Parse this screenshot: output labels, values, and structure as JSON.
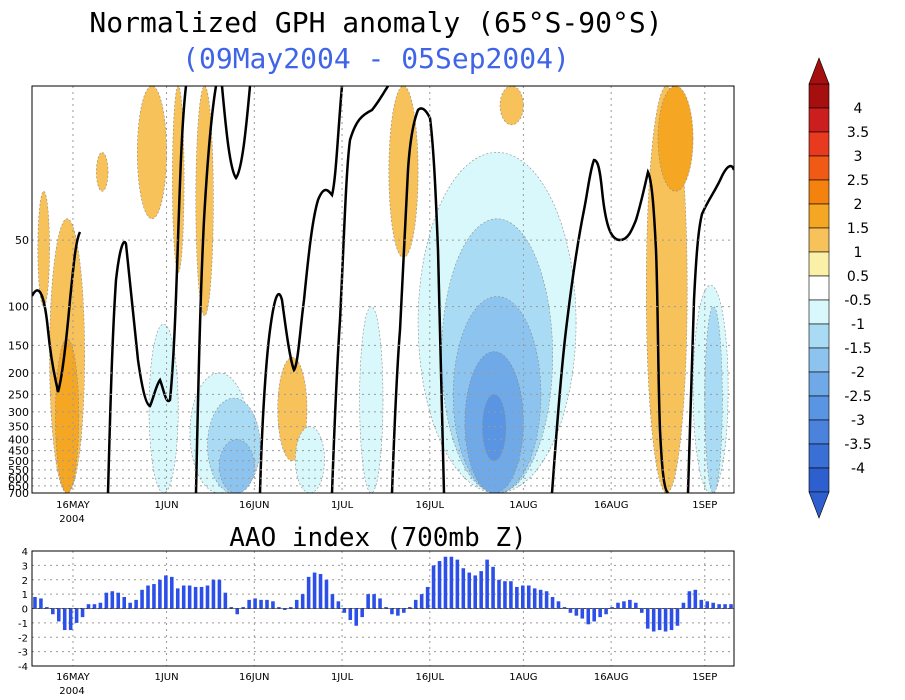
{
  "chart_data": [
    {
      "type": "heatmap",
      "title": "Normalized GPH anomaly (65°S-90°S)",
      "subtitle": "(09May2004 - 05Sep2004)",
      "y_scale": "log-pressure",
      "y_tick_labels": [
        "50",
        "100",
        "150",
        "200",
        "250",
        "300",
        "350",
        "400",
        "450",
        "500",
        "550",
        "600",
        "650",
        "700"
      ],
      "x_tick_labels": [
        "16MAY",
        "1JUN",
        "16JUN",
        "1JUL",
        "16JUL",
        "1AUG",
        "16AUG",
        "1SEP"
      ],
      "x_year_label": "2004",
      "x_range": [
        "2004-05-09",
        "2004-09-05"
      ],
      "grid": true,
      "colorbar_labels": [
        "4",
        "3.5",
        "3",
        "2.5",
        "2",
        "1.5",
        "1",
        "0.5",
        "-0.5",
        "-1",
        "-1.5",
        "-2",
        "-2.5",
        "-3",
        "-3.5",
        "-4"
      ],
      "colorbar_colors": [
        "#a50f0f",
        "#cc1e1e",
        "#e83a1e",
        "#f05a14",
        "#f5820f",
        "#f5a623",
        "#f7c25a",
        "#fbf0a8",
        "#ffffff",
        "#d8f8fb",
        "#a9dcf4",
        "#8cc4ef",
        "#6fa9e8",
        "#5a95e3",
        "#4b82dd",
        "#3a70d6",
        "#2d5fcf"
      ],
      "regions": [
        {
          "anomaly": 1.0,
          "date_start": "2004-05-10",
          "date_end": "2004-05-12",
          "p_top": 30,
          "p_bottom": 100
        },
        {
          "anomaly": 1.0,
          "date_start": "2004-05-12",
          "date_end": "2004-05-18",
          "p_top": 40,
          "p_bottom": 700
        },
        {
          "anomaly": 1.5,
          "date_start": "2004-05-13",
          "date_end": "2004-05-17",
          "p_top": 140,
          "p_bottom": 700
        },
        {
          "anomaly": 1.0,
          "date_start": "2004-05-20",
          "date_end": "2004-05-22",
          "p_top": 20,
          "p_bottom": 30
        },
        {
          "anomaly": 1.0,
          "date_start": "2004-05-27",
          "date_end": "2004-06-01",
          "p_top": 10,
          "p_bottom": 40
        },
        {
          "anomaly": 1.0,
          "date_start": "2004-06-02",
          "date_end": "2004-06-04",
          "p_top": 10,
          "p_bottom": 70
        },
        {
          "anomaly": 1.0,
          "date_start": "2004-06-06",
          "date_end": "2004-06-09",
          "p_top": 10,
          "p_bottom": 110
        },
        {
          "anomaly": 1.0,
          "date_start": "2004-06-20",
          "date_end": "2004-06-25",
          "p_top": 170,
          "p_bottom": 500
        },
        {
          "anomaly": 1.0,
          "date_start": "2004-07-09",
          "date_end": "2004-07-14",
          "p_top": 10,
          "p_bottom": 60
        },
        {
          "anomaly": 1.0,
          "date_start": "2004-07-28",
          "date_end": "2004-08-01",
          "p_top": 10,
          "p_bottom": 15
        },
        {
          "anomaly": 1.0,
          "date_start": "2004-08-22",
          "date_end": "2004-08-29",
          "p_top": 10,
          "p_bottom": 700
        },
        {
          "anomaly": 1.5,
          "date_start": "2004-08-24",
          "date_end": "2004-08-30",
          "p_top": 10,
          "p_bottom": 30
        },
        {
          "anomaly": -1.0,
          "date_start": "2004-05-29",
          "date_end": "2004-06-03",
          "p_top": 120,
          "p_bottom": 700
        },
        {
          "anomaly": -1.0,
          "date_start": "2004-06-05",
          "date_end": "2004-06-15",
          "p_top": 200,
          "p_bottom": 700
        },
        {
          "anomaly": -1.5,
          "date_start": "2004-06-08",
          "date_end": "2004-06-17",
          "p_top": 260,
          "p_bottom": 700
        },
        {
          "anomaly": -2.0,
          "date_start": "2004-06-10",
          "date_end": "2004-06-16",
          "p_top": 400,
          "p_bottom": 700
        },
        {
          "anomaly": -1.0,
          "date_start": "2004-06-23",
          "date_end": "2004-06-28",
          "p_top": 350,
          "p_bottom": 700
        },
        {
          "anomaly": -1.0,
          "date_start": "2004-07-04",
          "date_end": "2004-07-08",
          "p_top": 100,
          "p_bottom": 700
        },
        {
          "anomaly": -1.0,
          "date_start": "2004-07-14",
          "date_end": "2004-08-10",
          "p_top": 20,
          "p_bottom": 700
        },
        {
          "anomaly": -1.5,
          "date_start": "2004-07-18",
          "date_end": "2004-08-06",
          "p_top": 40,
          "p_bottom": 700
        },
        {
          "anomaly": -2.0,
          "date_start": "2004-07-20",
          "date_end": "2004-08-04",
          "p_top": 90,
          "p_bottom": 700
        },
        {
          "anomaly": -2.5,
          "date_start": "2004-07-22",
          "date_end": "2004-08-01",
          "p_top": 160,
          "p_bottom": 700
        },
        {
          "anomaly": -3.0,
          "date_start": "2004-07-25",
          "date_end": "2004-07-29",
          "p_top": 250,
          "p_bottom": 500
        },
        {
          "anomaly": -1.0,
          "date_start": "2004-08-30",
          "date_end": "2004-09-05",
          "p_top": 80,
          "p_bottom": 700
        },
        {
          "anomaly": -1.5,
          "date_start": "2004-09-01",
          "date_end": "2004-09-04",
          "p_top": 100,
          "p_bottom": 700
        }
      ]
    },
    {
      "type": "bar",
      "title": "AAO index (700mb Z)",
      "ylim": [
        -4,
        4
      ],
      "y_tick_labels": [
        "4",
        "3",
        "2",
        "1",
        "0",
        "-1",
        "-2",
        "-3",
        "-4"
      ],
      "x_tick_labels": [
        "16MAY",
        "1JUN",
        "16JUN",
        "1JUL",
        "16JUL",
        "1AUG",
        "16AUG",
        "1SEP"
      ],
      "x_year_label": "2004",
      "x_range": [
        "2004-05-09",
        "2004-09-05"
      ],
      "grid": true,
      "bar_color": "#2b4fe8",
      "values": [
        0.8,
        0.7,
        0.1,
        -0.4,
        -0.9,
        -1.5,
        -1.5,
        -1.0,
        -0.6,
        0.3,
        0.3,
        0.4,
        1.1,
        1.2,
        1.1,
        0.8,
        0.4,
        0.6,
        1.3,
        1.6,
        1.7,
        2.0,
        2.3,
        2.2,
        1.4,
        1.6,
        1.6,
        1.5,
        1.5,
        1.6,
        2.0,
        2.0,
        1.1,
        0.1,
        -0.4,
        0.1,
        0.6,
        0.7,
        0.6,
        0.6,
        0.5,
        0.1,
        -0.1,
        0.1,
        0.6,
        1.0,
        2.2,
        2.5,
        2.4,
        2.0,
        1.0,
        0.5,
        -0.3,
        -0.8,
        -1.2,
        -0.6,
        1.0,
        1.0,
        0.7,
        0.1,
        -0.4,
        -0.5,
        -0.3,
        0.1,
        0.6,
        1.0,
        1.5,
        3.0,
        3.3,
        3.6,
        3.6,
        3.4,
        2.8,
        2.5,
        2.3,
        2.6,
        3.4,
        2.9,
        2.0,
        1.9,
        1.9,
        1.5,
        1.6,
        1.6,
        1.4,
        1.3,
        1.2,
        0.8,
        0.5,
        0.1,
        -0.3,
        -0.5,
        -0.7,
        -1.1,
        -0.9,
        -0.6,
        -0.4,
        0.1,
        0.4,
        0.5,
        0.6,
        0.4,
        -0.3,
        -1.4,
        -1.6,
        -1.5,
        -1.6,
        -1.5,
        -1.2,
        0.4,
        1.2,
        1.3,
        0.6,
        0.5,
        0.4,
        0.3,
        0.3,
        0.3
      ]
    }
  ]
}
